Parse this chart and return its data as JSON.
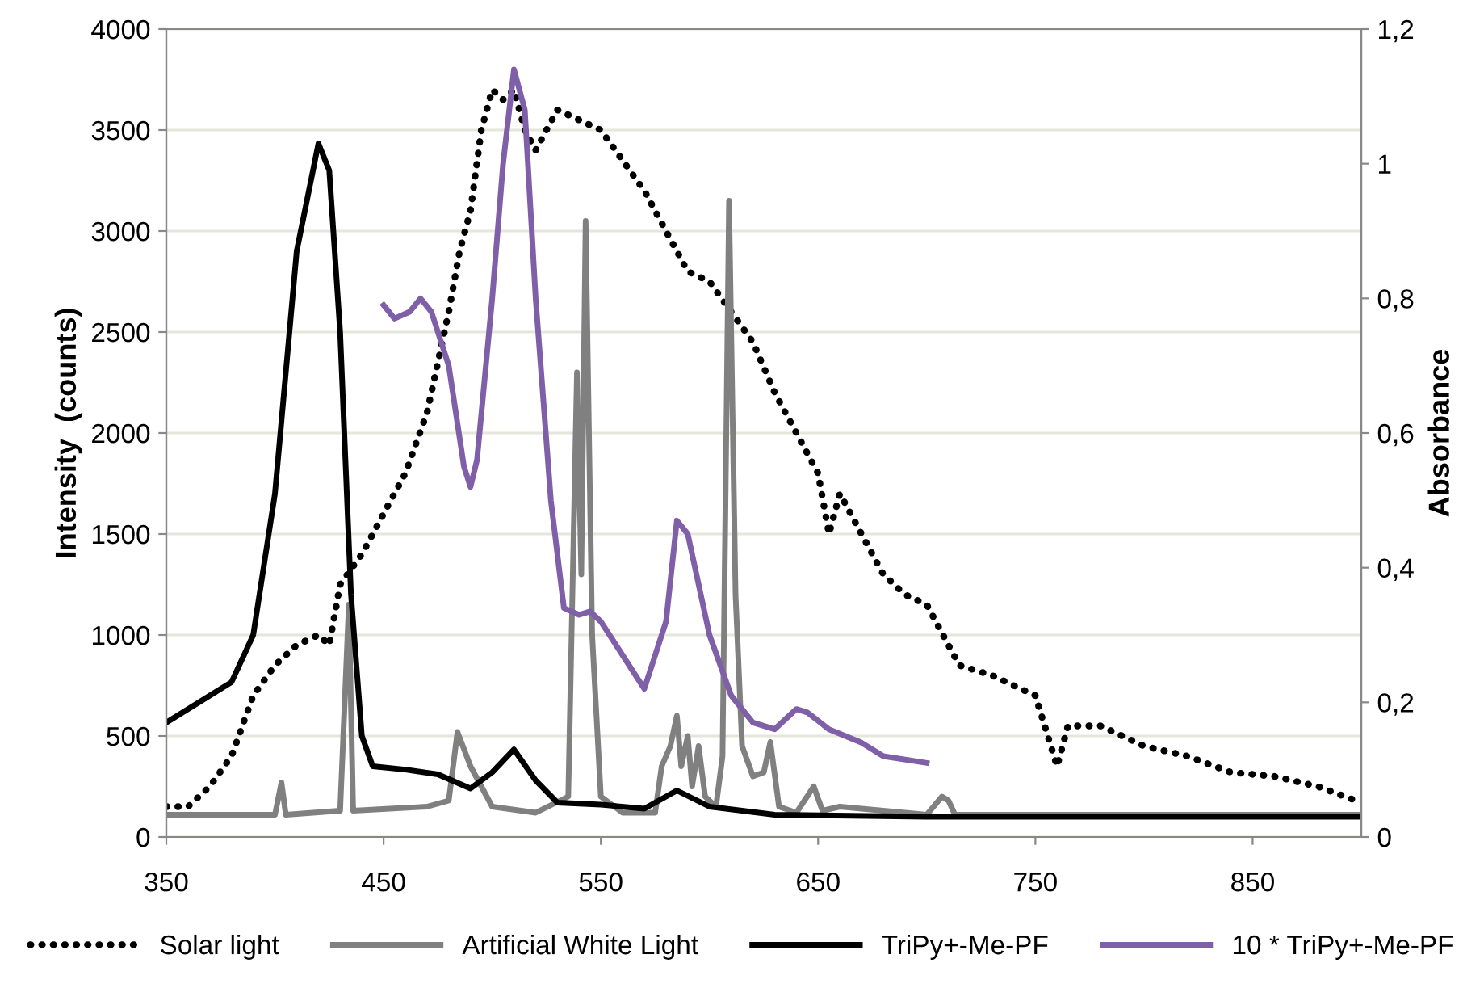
{
  "chart_data": {
    "type": "line",
    "xlabel": null,
    "ylabel": "Intensity  (counts)",
    "y2label": "Absorbance",
    "xlim": [
      350,
      900
    ],
    "xticks": [
      350,
      450,
      550,
      650,
      750,
      850
    ],
    "ylim": [
      0,
      4000
    ],
    "yticks": [
      0,
      500,
      1000,
      1500,
      2000,
      2500,
      3000,
      3500,
      4000
    ],
    "y2lim": [
      0,
      1.2
    ],
    "y2ticks": [
      0,
      {
        "value": 0.2,
        "label": "0,2"
      },
      {
        "value": 0.4,
        "label": "0,4"
      },
      {
        "value": 0.6,
        "label": "0,6"
      },
      {
        "value": 0.8,
        "label": "0,8"
      },
      1,
      {
        "value": 1.2,
        "label": "1,2"
      }
    ],
    "grid": "y",
    "legend": "bottom",
    "marker": "none",
    "series": [
      {
        "name": "Solar light",
        "color": "#000000",
        "line_style": "dotted",
        "x": [
          350,
          360,
          370,
          380,
          390,
          400,
          410,
          420,
          425,
          430,
          440,
          450,
          460,
          470,
          480,
          485,
          490,
          495,
          500,
          505,
          510,
          515,
          520,
          530,
          540,
          550,
          560,
          570,
          580,
          590,
          600,
          610,
          620,
          630,
          640,
          650,
          655,
          660,
          680,
          690,
          700,
          710,
          715,
          730,
          750,
          760,
          765,
          780,
          800,
          820,
          840,
          860,
          880,
          900
        ],
        "values": [
          150,
          150,
          250,
          400,
          700,
          850,
          950,
          1000,
          950,
          1250,
          1400,
          1600,
          1800,
          2100,
          2600,
          2900,
          3100,
          3500,
          3700,
          3650,
          3700,
          3500,
          3400,
          3600,
          3550,
          3500,
          3350,
          3200,
          3000,
          2800,
          2750,
          2600,
          2450,
          2200,
          2000,
          1800,
          1500,
          1700,
          1300,
          1200,
          1150,
          950,
          850,
          800,
          700,
          350,
          550,
          550,
          450,
          400,
          320,
          300,
          250,
          170
        ]
      },
      {
        "name": "Artificial White Light",
        "color": "#808080",
        "line_style": "solid",
        "x": [
          350,
          400,
          403,
          405,
          430,
          434,
          436,
          470,
          480,
          484,
          490,
          500,
          520,
          535,
          539,
          541,
          543,
          546,
          550,
          560,
          575,
          578,
          582,
          585,
          587,
          590,
          592,
          595,
          598,
          603,
          606,
          609,
          612,
          615,
          620,
          625,
          628,
          632,
          640,
          648,
          652,
          660,
          700,
          707,
          710,
          713,
          900
        ],
        "values": [
          110,
          110,
          270,
          110,
          130,
          1150,
          130,
          150,
          180,
          520,
          350,
          150,
          120,
          200,
          2300,
          1300,
          3050,
          1000,
          200,
          120,
          120,
          350,
          450,
          600,
          350,
          500,
          250,
          450,
          200,
          150,
          400,
          3150,
          1200,
          450,
          300,
          320,
          470,
          150,
          120,
          250,
          130,
          150,
          110,
          200,
          180,
          110,
          110
        ]
      },
      {
        "name": "TriPy+-Me-PF",
        "color": "#000000",
        "line_style": "solid",
        "axis": "y2",
        "x": [
          350,
          370,
          380,
          390,
          400,
          410,
          420,
          425,
          430,
          435,
          440,
          445,
          460,
          475,
          490,
          500,
          510,
          520,
          530,
          550,
          570,
          585,
          600,
          630,
          700,
          900
        ],
        "values": [
          0.17,
          0.21,
          0.23,
          0.3,
          0.51,
          0.87,
          1.03,
          0.99,
          0.75,
          0.36,
          0.15,
          0.105,
          0.1,
          0.093,
          0.072,
          0.096,
          0.13,
          0.084,
          0.051,
          0.048,
          0.042,
          0.069,
          0.045,
          0.033,
          0.03,
          0.03
        ]
      },
      {
        "name": "10 * TriPy+-Me-PF",
        "color": "#7f5fa8",
        "line_style": "solid",
        "axis": "y2",
        "x": [
          450,
          455,
          462,
          467,
          472,
          480,
          487,
          490,
          493,
          500,
          505,
          510,
          515,
          520,
          527,
          533,
          540,
          545,
          550,
          560,
          570,
          580,
          585,
          590,
          600,
          610,
          620,
          630,
          640,
          645,
          655,
          670,
          680,
          700
        ],
        "values": [
          0.79,
          0.77,
          0.78,
          0.8,
          0.78,
          0.7,
          0.55,
          0.52,
          0.56,
          0.8,
          1.0,
          1.14,
          1.08,
          0.8,
          0.5,
          0.34,
          0.33,
          0.335,
          0.32,
          0.27,
          0.22,
          0.32,
          0.47,
          0.45,
          0.3,
          0.21,
          0.17,
          0.16,
          0.19,
          0.185,
          0.16,
          0.14,
          0.12,
          0.11
        ]
      }
    ]
  }
}
